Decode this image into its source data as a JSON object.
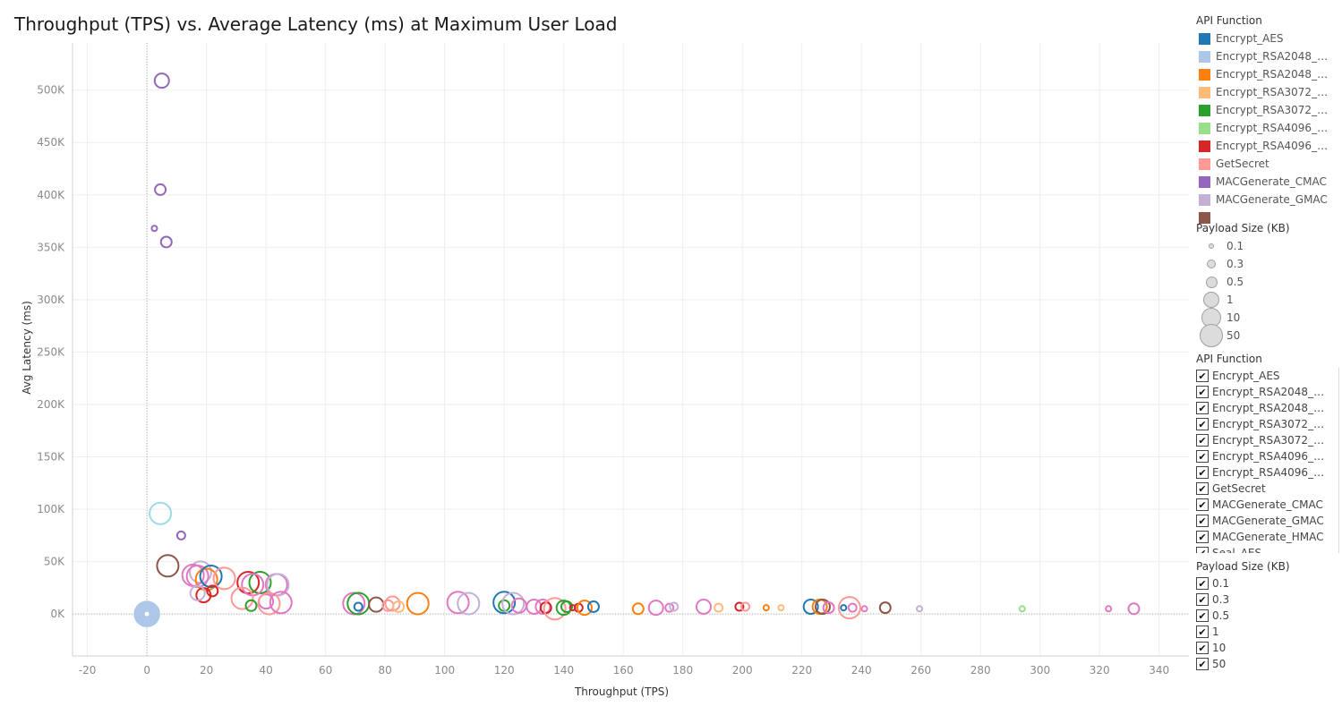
{
  "title": "Throughput (TPS) vs. Average Latency (ms) at Maximum User Load",
  "legend": {
    "title": "API Function",
    "items": [
      {
        "label": "Encrypt_AES",
        "color": "#1f77b4"
      },
      {
        "label": "Encrypt_RSA2048_n..",
        "color": "#aec7e8"
      },
      {
        "label": "Encrypt_RSA2048_w..",
        "color": "#ff7f0e"
      },
      {
        "label": "Encrypt_RSA3072_n..",
        "color": "#ffbb78"
      },
      {
        "label": "Encrypt_RSA3072_w..",
        "color": "#2ca02c"
      },
      {
        "label": "Encrypt_RSA4096_n..",
        "color": "#98df8a"
      },
      {
        "label": "Encrypt_RSA4096_w..",
        "color": "#d62728"
      },
      {
        "label": "GetSecret",
        "color": "#ff9896"
      },
      {
        "label": "MACGenerate_CMAC",
        "color": "#9467bd"
      },
      {
        "label": "MACGenerate_GMAC",
        "color": "#c5b0d5"
      },
      {
        "label": "",
        "color": "#8c564b"
      }
    ]
  },
  "size_legend": {
    "title": "Payload Size (KB)",
    "items": [
      "0.1",
      "0.3",
      "0.5",
      "1",
      "10",
      "50"
    ]
  },
  "api_filter": {
    "title": "API Function",
    "items": [
      "Encrypt_AES",
      "Encrypt_RSA2048_no..",
      "Encrypt_RSA2048_wi..",
      "Encrypt_RSA3072_no..",
      "Encrypt_RSA3072_wi..",
      "Encrypt_RSA4096_no..",
      "Encrypt_RSA4096_wi..",
      "GetSecret",
      "MACGenerate_CMAC",
      "MACGenerate_GMAC",
      "MACGenerate_HMAC",
      "Seal_AES"
    ]
  },
  "payload_filter": {
    "title": "Payload Size (KB)",
    "items": [
      "0.1",
      "0.3",
      "0.5",
      "1",
      "10",
      "50"
    ]
  },
  "chart_data": {
    "type": "scatter",
    "title": "Throughput (TPS) vs. Average Latency (ms) at Maximum User Load",
    "xlabel": "Throughput (TPS)",
    "ylabel": "Avg Latency (ms)",
    "xlim": [
      -25,
      350
    ],
    "ylim": [
      -40000,
      545000
    ],
    "x_ticks": [
      -20,
      0,
      20,
      40,
      60,
      80,
      100,
      120,
      140,
      160,
      180,
      200,
      220,
      240,
      260,
      280,
      300,
      320,
      340
    ],
    "y_ticks": [
      0,
      50000,
      100000,
      150000,
      200000,
      250000,
      300000,
      350000,
      400000,
      450000,
      500000
    ],
    "y_tick_labels": [
      "0K",
      "50K",
      "100K",
      "150K",
      "200K",
      "250K",
      "300K",
      "350K",
      "400K",
      "450K",
      "500K"
    ],
    "x_tick_labels": [
      "-20",
      "0",
      "20",
      "40",
      "60",
      "80",
      "100",
      "120",
      "140",
      "160",
      "180",
      "200",
      "220",
      "240",
      "260",
      "280",
      "300",
      "320",
      "340"
    ],
    "grid": true,
    "marker": "hollow circle",
    "size_encoding": "Payload Size (KB)",
    "points": [
      {
        "x": 5,
        "y": 509000,
        "series": "MACGenerate_CMAC",
        "size": "1"
      },
      {
        "x": 4.5,
        "y": 405000,
        "series": "MACGenerate_CMAC",
        "size": "0.5"
      },
      {
        "x": 2.5,
        "y": 368000,
        "series": "MACGenerate_CMAC",
        "size": "0.1"
      },
      {
        "x": 6.5,
        "y": 355000,
        "series": "MACGenerate_CMAC",
        "size": "0.5"
      },
      {
        "x": 4.5,
        "y": 96000,
        "series": "MACGenerate_HMAC",
        "size": "10"
      },
      {
        "x": 11.5,
        "y": 75000,
        "series": "MACGenerate_CMAC",
        "size": "0.3"
      },
      {
        "x": 7,
        "y": 46000,
        "series": "Seal_AES",
        "size": "10"
      },
      {
        "x": 0,
        "y": 0,
        "series": "Encrypt_RSA2048_no",
        "size": "50"
      },
      {
        "x": 18,
        "y": 40000,
        "series": "MACGenerate_GMAC",
        "size": "10"
      },
      {
        "x": 15.5,
        "y": 37000,
        "series": "Other",
        "size": "10"
      },
      {
        "x": 17,
        "y": 36000,
        "series": "Other",
        "size": "10"
      },
      {
        "x": 20,
        "y": 33000,
        "series": "Encrypt_RSA2048_w",
        "size": "10"
      },
      {
        "x": 21.5,
        "y": 36000,
        "series": "Encrypt_AES",
        "size": "10"
      },
      {
        "x": 26,
        "y": 34000,
        "series": "GetSecret",
        "size": "10"
      },
      {
        "x": 19,
        "y": 18000,
        "series": "Encrypt_RSA4096_w",
        "size": "1"
      },
      {
        "x": 22,
        "y": 22000,
        "series": "Encrypt_RSA4096_w",
        "size": "0.5"
      },
      {
        "x": 17,
        "y": 20000,
        "series": "MACGenerate_GMAC",
        "size": "1"
      },
      {
        "x": 34,
        "y": 30000,
        "series": "Encrypt_RSA4096_w",
        "size": "10"
      },
      {
        "x": 38,
        "y": 30000,
        "series": "Encrypt_RSA3072_w",
        "size": "10"
      },
      {
        "x": 35.5,
        "y": 28000,
        "series": "Other",
        "size": "10"
      },
      {
        "x": 43.5,
        "y": 28000,
        "series": "Other",
        "size": "10"
      },
      {
        "x": 44,
        "y": 28000,
        "series": "MACGenerate_GMAC",
        "size": "10"
      },
      {
        "x": 32,
        "y": 15000,
        "series": "GetSecret",
        "size": "10"
      },
      {
        "x": 35,
        "y": 8000,
        "series": "Encrypt_RSA3072_w",
        "size": "0.5"
      },
      {
        "x": 40,
        "y": 12000,
        "series": "Other",
        "size": "1"
      },
      {
        "x": 41,
        "y": 10000,
        "series": "GetSecret",
        "size": "10"
      },
      {
        "x": 45,
        "y": 11000,
        "series": "Other",
        "size": "10"
      },
      {
        "x": 69.5,
        "y": 10000,
        "series": "Other",
        "size": "10"
      },
      {
        "x": 71,
        "y": 10000,
        "series": "Encrypt_RSA3072_w",
        "size": "10"
      },
      {
        "x": 71,
        "y": 7000,
        "series": "Encrypt_AES",
        "size": "0.3"
      },
      {
        "x": 77,
        "y": 9000,
        "series": "Seal_AES",
        "size": "1"
      },
      {
        "x": 81,
        "y": 8000,
        "series": "GetSecret",
        "size": "0.5"
      },
      {
        "x": 82.5,
        "y": 10000,
        "series": "GetSecret",
        "size": "1"
      },
      {
        "x": 84.5,
        "y": 7000,
        "series": "Encrypt_RSA3072_n",
        "size": "0.5"
      },
      {
        "x": 91,
        "y": 10000,
        "series": "Encrypt_RSA2048_w",
        "size": "10"
      },
      {
        "x": 104.5,
        "y": 11000,
        "series": "Other",
        "size": "10"
      },
      {
        "x": 108,
        "y": 10000,
        "series": "MACGenerate_GMAC",
        "size": "10"
      },
      {
        "x": 120,
        "y": 11000,
        "series": "Encrypt_AES",
        "size": "10"
      },
      {
        "x": 120,
        "y": 8000,
        "series": "Encrypt_RSA3072_w",
        "size": "0.5"
      },
      {
        "x": 123,
        "y": 10000,
        "series": "MACGenerate_GMAC",
        "size": "10"
      },
      {
        "x": 125,
        "y": 8000,
        "series": "Other",
        "size": "1"
      },
      {
        "x": 130,
        "y": 7000,
        "series": "Other",
        "size": "1"
      },
      {
        "x": 133,
        "y": 7000,
        "series": "Other",
        "size": "1"
      },
      {
        "x": 134,
        "y": 6000,
        "series": "Encrypt_RSA4096_w",
        "size": "0.5"
      },
      {
        "x": 137,
        "y": 5000,
        "series": "GetSecret",
        "size": "10"
      },
      {
        "x": 140,
        "y": 6000,
        "series": "Encrypt_RSA3072_w",
        "size": "1"
      },
      {
        "x": 141,
        "y": 7000,
        "series": "Encrypt_RSA3072_w",
        "size": "0.5"
      },
      {
        "x": 143,
        "y": 6000,
        "series": "Encrypt_RSA4096_w",
        "size": "0.1"
      },
      {
        "x": 145,
        "y": 6000,
        "series": "Encrypt_RSA4096_w",
        "size": "0.3"
      },
      {
        "x": 147,
        "y": 6000,
        "series": "Encrypt_RSA2048_w",
        "size": "1"
      },
      {
        "x": 150,
        "y": 7000,
        "series": "Encrypt_AES",
        "size": "0.5"
      },
      {
        "x": 165,
        "y": 5000,
        "series": "Encrypt_RSA2048_w",
        "size": "0.5"
      },
      {
        "x": 171,
        "y": 6000,
        "series": "Other",
        "size": "1"
      },
      {
        "x": 175.5,
        "y": 6000,
        "series": "Other",
        "size": "0.3"
      },
      {
        "x": 177,
        "y": 7000,
        "series": "MACGenerate_GMAC",
        "size": "0.3"
      },
      {
        "x": 187,
        "y": 7000,
        "series": "Other",
        "size": "1"
      },
      {
        "x": 192,
        "y": 6000,
        "series": "Encrypt_RSA3072_n",
        "size": "0.3"
      },
      {
        "x": 199,
        "y": 7000,
        "series": "Encrypt_RSA4096_w",
        "size": "0.3"
      },
      {
        "x": 201,
        "y": 7000,
        "series": "GetSecret",
        "size": "0.3"
      },
      {
        "x": 208,
        "y": 6000,
        "series": "Encrypt_RSA2048_w",
        "size": "0.1"
      },
      {
        "x": 213,
        "y": 6000,
        "series": "Encrypt_RSA3072_n",
        "size": "0.1"
      },
      {
        "x": 223,
        "y": 7000,
        "series": "Encrypt_AES",
        "size": "1"
      },
      {
        "x": 226,
        "y": 7000,
        "series": "Encrypt_RSA2048_w",
        "size": "1"
      },
      {
        "x": 227,
        "y": 7000,
        "series": "Seal_AES",
        "size": "1"
      },
      {
        "x": 229,
        "y": 6000,
        "series": "Other",
        "size": "0.5"
      },
      {
        "x": 234,
        "y": 6000,
        "series": "Encrypt_AES",
        "size": "0.1"
      },
      {
        "x": 236,
        "y": 6000,
        "series": "GetSecret",
        "size": "10"
      },
      {
        "x": 237,
        "y": 6000,
        "series": "Other",
        "size": "0.3"
      },
      {
        "x": 241,
        "y": 5000,
        "series": "Other",
        "size": "0.1"
      },
      {
        "x": 248,
        "y": 6000,
        "series": "Seal_AES",
        "size": "0.5"
      },
      {
        "x": 259.5,
        "y": 5000,
        "series": "MACGenerate_GMAC",
        "size": "0.1"
      },
      {
        "x": 294,
        "y": 5000,
        "series": "Encrypt_RSA4096_n",
        "size": "0.1"
      },
      {
        "x": 323,
        "y": 5000,
        "series": "Other",
        "size": "0.1"
      },
      {
        "x": 331.5,
        "y": 5000,
        "series": "Other",
        "size": "0.5"
      }
    ],
    "series_colors": {
      "Encrypt_AES": "#1f77b4",
      "Encrypt_RSA2048_no": "#aec7e8",
      "Encrypt_RSA2048_w": "#ff7f0e",
      "Encrypt_RSA3072_n": "#ffbb78",
      "Encrypt_RSA3072_w": "#2ca02c",
      "Encrypt_RSA4096_n": "#98df8a",
      "Encrypt_RSA4096_w": "#d62728",
      "GetSecret": "#ff9896",
      "MACGenerate_CMAC": "#9467bd",
      "MACGenerate_GMAC": "#c5b0d5",
      "Seal_AES": "#8c564b",
      "MACGenerate_HMAC": "#9edae5",
      "Other": "#e377c2"
    },
    "size_radius": {
      "0.1": 3,
      "0.3": 4.5,
      "0.5": 6,
      "1": 8,
      "10": 12,
      "50": 14
    }
  }
}
